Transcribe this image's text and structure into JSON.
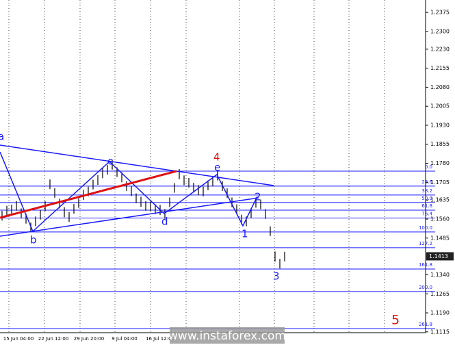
{
  "chart_data": {
    "type": "ohlc-bars",
    "watermark": "www.instaforex.com",
    "x_labels": [
      "15 Jun 04:00",
      "22 Jun 12:00",
      "29 Jun 20:00",
      "9 Jul 04:00",
      "16 Jul 12:00"
    ],
    "high": [
      1.1592,
      1.1612,
      1.1617,
      1.1631,
      1.1602,
      1.1582,
      1.1546,
      1.157,
      1.1596,
      1.1631,
      1.1716,
      1.1682,
      1.164,
      1.1607,
      1.1587,
      1.1619,
      1.1642,
      1.1675,
      1.1688,
      1.1715,
      1.1733,
      1.1761,
      1.1773,
      1.1793,
      1.1764,
      1.1745,
      1.1709,
      1.1689,
      1.1661,
      1.1648,
      1.1631,
      1.1629,
      1.1618,
      1.1616,
      1.1599,
      1.1645,
      1.1702,
      1.1757,
      1.1732,
      1.1722,
      1.1703,
      1.1694,
      1.1688,
      1.1712,
      1.1727,
      1.1752,
      1.1709,
      1.1681,
      1.1645,
      1.1618,
      1.1577,
      1.157,
      1.1603,
      1.1645,
      1.1637,
      1.1599,
      1.1531,
      1.1432,
      1.1403,
      1.1431
    ],
    "low": [
      1.1554,
      1.1572,
      1.1579,
      1.1593,
      1.1564,
      1.1542,
      1.1508,
      1.1532,
      1.1558,
      1.1591,
      1.1678,
      1.1644,
      1.1602,
      1.1567,
      1.1549,
      1.1581,
      1.1604,
      1.1635,
      1.165,
      1.1677,
      1.1695,
      1.1721,
      1.1735,
      1.1755,
      1.1726,
      1.1705,
      1.1671,
      1.1651,
      1.1623,
      1.1608,
      1.1593,
      1.1591,
      1.158,
      1.1576,
      1.1561,
      1.1607,
      1.1664,
      1.1717,
      1.1694,
      1.1684,
      1.1665,
      1.1654,
      1.165,
      1.1674,
      1.1689,
      1.1712,
      1.1671,
      1.1643,
      1.1607,
      1.1578,
      1.1539,
      1.1532,
      1.1565,
      1.1605,
      1.1599,
      1.1561,
      1.1493,
      1.1392,
      1.1365,
      1.1393
    ],
    "current_price": 1.1413,
    "fib_levels": [
      {
        "label": "0.0",
        "price": 1.1749
      },
      {
        "label": "23.6",
        "price": 1.169
      },
      {
        "label": "38.2",
        "price": 1.1655
      },
      {
        "label": "50.0",
        "price": 1.1625
      },
      {
        "label": "61.8",
        "price": 1.1595
      },
      {
        "label": "76.4",
        "price": 1.1564
      },
      {
        "label": "100.0",
        "price": 1.1509
      },
      {
        "label": "127.2",
        "price": 1.1447
      },
      {
        "label": "161.8",
        "price": 1.1363
      },
      {
        "label": "200.0",
        "price": 1.1274
      },
      {
        "label": "261.8",
        "price": 1.1128
      }
    ],
    "wave_labels": [
      "a",
      "b",
      "c",
      "d",
      "e",
      "4",
      "1",
      "2",
      "3",
      "5"
    ],
    "ylim": [
      1.1101,
      1.2424
    ],
    "yticks": [
      1.2375,
      {
        "value": 1.23,
        "label": "1.2300"
      },
      {
        "value": 1.223,
        "label": "1.2230"
      },
      1.2155,
      {
        "value": 1.208,
        "label": "1.2080"
      },
      1.2005,
      {
        "value": 1.193,
        "label": "1.1930"
      },
      1.1855,
      {
        "value": 1.178,
        "label": "1.1780"
      },
      1.1705,
      1.1635,
      {
        "value": 1.156,
        "label": "1.1560"
      },
      1.1485,
      {
        "value": 1.134,
        "label": "1.1340"
      },
      1.1265,
      {
        "value": 1.119,
        "label": "1.1190"
      },
      1.1115
    ],
    "bar_color": "#000000",
    "level_color": "#1a1aff"
  }
}
